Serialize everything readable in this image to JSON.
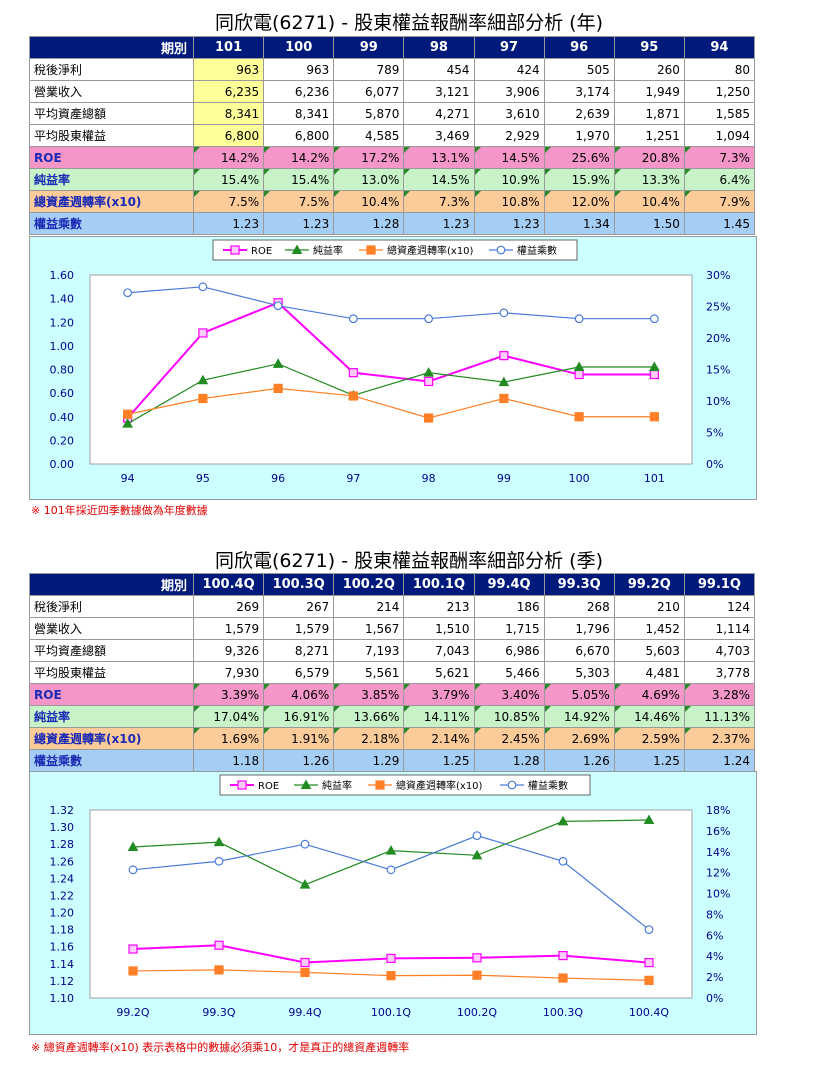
{
  "annual": {
    "title": "同欣電(6271) -  股東權益報酬率細部分析 (年)",
    "header_label": "期別",
    "periods": [
      "101",
      "100",
      "99",
      "98",
      "97",
      "96",
      "95",
      "94"
    ],
    "rows": [
      {
        "label": "稅後淨利",
        "values": [
          "963",
          "963",
          "789",
          "454",
          "424",
          "505",
          "260",
          "80"
        ]
      },
      {
        "label": "營業收入",
        "values": [
          "6,235",
          "6,236",
          "6,077",
          "3,121",
          "3,906",
          "3,174",
          "1,949",
          "1,250"
        ]
      },
      {
        "label": "平均資產總額",
        "values": [
          "8,341",
          "8,341",
          "5,870",
          "4,271",
          "3,610",
          "2,639",
          "1,871",
          "1,585"
        ]
      },
      {
        "label": "平均股東權益",
        "values": [
          "6,800",
          "6,800",
          "4,585",
          "3,469",
          "2,929",
          "1,970",
          "1,251",
          "1,094"
        ]
      },
      {
        "label": "ROE",
        "values": [
          "14.2%",
          "14.2%",
          "17.2%",
          "13.1%",
          "14.5%",
          "25.6%",
          "20.8%",
          "7.3%"
        ]
      },
      {
        "label": "純益率",
        "values": [
          "15.4%",
          "15.4%",
          "13.0%",
          "14.5%",
          "10.9%",
          "15.9%",
          "13.3%",
          "6.4%"
        ]
      },
      {
        "label": "總資產週轉率(x10)",
        "values": [
          "7.5%",
          "7.5%",
          "10.4%",
          "7.3%",
          "10.8%",
          "12.0%",
          "10.4%",
          "7.9%"
        ]
      },
      {
        "label": "權益乘數",
        "values": [
          "1.23",
          "1.23",
          "1.28",
          "1.23",
          "1.23",
          "1.34",
          "1.50",
          "1.45"
        ]
      }
    ],
    "note": "※ 101年採近四季數據做為年度數據"
  },
  "quarterly": {
    "title": "同欣電(6271) -  股東權益報酬率細部分析 (季)",
    "header_label": "期別",
    "periods": [
      "100.4Q",
      "100.3Q",
      "100.2Q",
      "100.1Q",
      "99.4Q",
      "99.3Q",
      "99.2Q",
      "99.1Q"
    ],
    "rows": [
      {
        "label": "稅後淨利",
        "values": [
          "269",
          "267",
          "214",
          "213",
          "186",
          "268",
          "210",
          "124"
        ]
      },
      {
        "label": "營業收入",
        "values": [
          "1,579",
          "1,579",
          "1,567",
          "1,510",
          "1,715",
          "1,796",
          "1,452",
          "1,114"
        ]
      },
      {
        "label": "平均資產總額",
        "values": [
          "9,326",
          "8,271",
          "7,193",
          "7,043",
          "6,986",
          "6,670",
          "5,603",
          "4,703"
        ]
      },
      {
        "label": "平均股東權益",
        "values": [
          "7,930",
          "6,579",
          "5,561",
          "5,621",
          "5,466",
          "5,303",
          "4,481",
          "3,778"
        ]
      },
      {
        "label": "ROE",
        "values": [
          "3.39%",
          "4.06%",
          "3.85%",
          "3.79%",
          "3.40%",
          "5.05%",
          "4.69%",
          "3.28%"
        ]
      },
      {
        "label": "純益率",
        "values": [
          "17.04%",
          "16.91%",
          "13.66%",
          "14.11%",
          "10.85%",
          "14.92%",
          "14.46%",
          "11.13%"
        ]
      },
      {
        "label": "總資產週轉率(x10)",
        "values": [
          "1.69%",
          "1.91%",
          "2.18%",
          "2.14%",
          "2.45%",
          "2.69%",
          "2.59%",
          "2.37%"
        ]
      },
      {
        "label": "權益乘數",
        "values": [
          "1.18",
          "1.26",
          "1.29",
          "1.25",
          "1.28",
          "1.26",
          "1.25",
          "1.24"
        ]
      }
    ],
    "note": "※ 總資產週轉率(x10) 表示表格中的數據必須乘10，才是真正的總資產週轉率"
  },
  "chart_data": [
    {
      "type": "line",
      "categories": [
        "94",
        "95",
        "96",
        "97",
        "98",
        "99",
        "100",
        "101"
      ],
      "y_left": {
        "range": [
          0,
          1.6
        ],
        "ticks": [
          "0.00",
          "0.20",
          "0.40",
          "0.60",
          "0.80",
          "1.00",
          "1.20",
          "1.40",
          "1.60"
        ]
      },
      "y_right": {
        "range": [
          0,
          30
        ],
        "ticks": [
          "0%",
          "5%",
          "10%",
          "15%",
          "20%",
          "25%",
          "30%"
        ]
      },
      "legend_position": "top",
      "series": [
        {
          "name": "ROE",
          "axis": "right",
          "color": "#ff00ff",
          "marker": "square",
          "values": [
            7.3,
            20.8,
            25.6,
            14.5,
            13.1,
            17.2,
            14.2,
            14.2
          ]
        },
        {
          "name": "純益率",
          "axis": "right",
          "color": "#228b22",
          "marker": "triangle",
          "values": [
            6.4,
            13.3,
            15.9,
            10.9,
            14.5,
            13.0,
            15.4,
            15.4
          ]
        },
        {
          "name": "總資產週轉率(x10)",
          "axis": "right",
          "color": "#ff7f27",
          "marker": "square",
          "values": [
            7.9,
            10.4,
            12.0,
            10.8,
            7.3,
            10.4,
            7.5,
            7.5
          ]
        },
        {
          "name": "權益乘數",
          "axis": "left",
          "color": "#4a7bd8",
          "marker": "circle",
          "values": [
            1.45,
            1.5,
            1.34,
            1.23,
            1.23,
            1.28,
            1.23,
            1.23
          ]
        }
      ]
    },
    {
      "type": "line",
      "categories": [
        "99.2Q",
        "99.3Q",
        "99.4Q",
        "100.1Q",
        "100.2Q",
        "100.3Q",
        "100.4Q"
      ],
      "y_left": {
        "range": [
          1.1,
          1.32
        ],
        "ticks": [
          "1.10",
          "1.12",
          "1.14",
          "1.16",
          "1.18",
          "1.20",
          "1.22",
          "1.24",
          "1.26",
          "1.28",
          "1.30",
          "1.32"
        ]
      },
      "y_right": {
        "range": [
          0,
          18
        ],
        "ticks": [
          "0%",
          "2%",
          "4%",
          "6%",
          "8%",
          "10%",
          "12%",
          "14%",
          "16%",
          "18%"
        ]
      },
      "legend_position": "top",
      "series": [
        {
          "name": "ROE",
          "axis": "right",
          "color": "#ff00ff",
          "marker": "square",
          "values": [
            4.69,
            5.05,
            3.4,
            3.79,
            3.85,
            4.06,
            3.39
          ]
        },
        {
          "name": "純益率",
          "axis": "right",
          "color": "#228b22",
          "marker": "triangle",
          "values": [
            14.46,
            14.92,
            10.85,
            14.11,
            13.66,
            16.91,
            17.04
          ]
        },
        {
          "name": "總資產週轉率(x10)",
          "axis": "right",
          "color": "#ff7f27",
          "marker": "square",
          "values": [
            2.59,
            2.69,
            2.45,
            2.14,
            2.18,
            1.91,
            1.69
          ]
        },
        {
          "name": "權益乘數",
          "axis": "left",
          "color": "#4a7bd8",
          "marker": "circle",
          "values": [
            1.25,
            1.26,
            1.28,
            1.25,
            1.29,
            1.26,
            1.18
          ]
        }
      ]
    }
  ]
}
